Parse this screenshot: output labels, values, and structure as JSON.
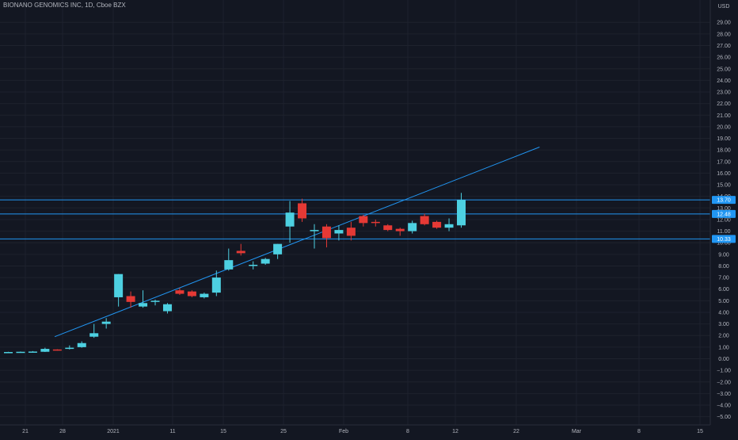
{
  "header": {
    "symbol_name": "BIONANO GENOMICS INC",
    "interval": "1D",
    "exchange": "Cboe BZX",
    "currency": "USD"
  },
  "colors": {
    "background": "#131722",
    "grid": "#1e222d",
    "up": "#4dd0e1",
    "down": "#e53935",
    "line": "#2196f3",
    "text": "#b2b5be"
  },
  "chart_data": {
    "type": "candlestick",
    "title": "BIONANO GENOMICS INC, 1D, Cboe BZX",
    "currency": "USD",
    "ylim": [
      -5.5,
      30.5
    ],
    "y_ticks": [
      "29.00",
      "28.00",
      "27.00",
      "26.00",
      "25.00",
      "24.00",
      "23.00",
      "22.00",
      "21.00",
      "20.00",
      "19.00",
      "18.00",
      "17.00",
      "16.00",
      "15.00",
      "14.00",
      "13.00",
      "12.00",
      "11.00",
      "10.00",
      "9.00",
      "8.00",
      "7.00",
      "6.00",
      "5.00",
      "4.00",
      "3.00",
      "2.00",
      "1.00",
      "0.00",
      "−1.00",
      "−2.00",
      "−3.00",
      "−4.00",
      "−5.00"
    ],
    "x_tick_labels": [
      "21",
      "28",
      "2021",
      "11",
      "15",
      "25",
      "Feb",
      "8",
      "12",
      "22",
      "Mar",
      "8",
      "15"
    ],
    "candles": [
      {
        "o": 0.55,
        "h": 0.6,
        "l": 0.52,
        "c": 0.58
      },
      {
        "o": 0.58,
        "h": 0.62,
        "l": 0.55,
        "c": 0.6
      },
      {
        "o": 0.6,
        "h": 0.66,
        "l": 0.57,
        "c": 0.62
      },
      {
        "o": 0.6,
        "h": 0.95,
        "l": 0.58,
        "c": 0.85
      },
      {
        "o": 0.8,
        "h": 0.82,
        "l": 0.7,
        "c": 0.75
      },
      {
        "o": 0.85,
        "h": 1.15,
        "l": 0.8,
        "c": 0.95
      },
      {
        "o": 1.0,
        "h": 1.5,
        "l": 0.95,
        "c": 1.35
      },
      {
        "o": 1.9,
        "h": 3.0,
        "l": 1.8,
        "c": 2.2
      },
      {
        "o": 3.0,
        "h": 3.5,
        "l": 2.6,
        "c": 3.2
      },
      {
        "o": 5.3,
        "h": 7.3,
        "l": 4.5,
        "c": 7.3
      },
      {
        "o": 5.4,
        "h": 5.8,
        "l": 4.4,
        "c": 4.9
      },
      {
        "o": 4.5,
        "h": 5.9,
        "l": 4.4,
        "c": 4.8
      },
      {
        "o": 4.9,
        "h": 5.1,
        "l": 4.6,
        "c": 5.0
      },
      {
        "o": 4.1,
        "h": 4.8,
        "l": 3.9,
        "c": 4.7
      },
      {
        "o": 5.9,
        "h": 6.1,
        "l": 5.5,
        "c": 5.6
      },
      {
        "o": 5.8,
        "h": 5.9,
        "l": 5.3,
        "c": 5.4
      },
      {
        "o": 5.3,
        "h": 5.7,
        "l": 5.2,
        "c": 5.6
      },
      {
        "o": 5.7,
        "h": 7.6,
        "l": 5.4,
        "c": 7.0
      },
      {
        "o": 7.7,
        "h": 9.5,
        "l": 7.6,
        "c": 8.5
      },
      {
        "o": 9.3,
        "h": 9.9,
        "l": 8.9,
        "c": 9.1
      },
      {
        "o": 8.0,
        "h": 8.4,
        "l": 7.7,
        "c": 8.1
      },
      {
        "o": 8.2,
        "h": 8.7,
        "l": 8.1,
        "c": 8.6
      },
      {
        "o": 9.0,
        "h": 9.9,
        "l": 8.6,
        "c": 9.9
      },
      {
        "o": 11.4,
        "h": 13.6,
        "l": 10.0,
        "c": 12.6
      },
      {
        "o": 13.4,
        "h": 13.8,
        "l": 11.8,
        "c": 12.1
      },
      {
        "o": 11.0,
        "h": 11.6,
        "l": 9.5,
        "c": 11.1
      },
      {
        "o": 11.4,
        "h": 11.6,
        "l": 9.6,
        "c": 10.4
      },
      {
        "o": 10.8,
        "h": 11.5,
        "l": 10.2,
        "c": 11.1
      },
      {
        "o": 11.3,
        "h": 11.8,
        "l": 10.2,
        "c": 10.6
      },
      {
        "o": 12.3,
        "h": 12.4,
        "l": 11.4,
        "c": 11.7
      },
      {
        "o": 11.8,
        "h": 12.0,
        "l": 11.4,
        "c": 11.7
      },
      {
        "o": 11.5,
        "h": 11.6,
        "l": 11.0,
        "c": 11.1
      },
      {
        "o": 11.2,
        "h": 11.3,
        "l": 10.6,
        "c": 11.0
      },
      {
        "o": 11.0,
        "h": 11.9,
        "l": 10.8,
        "c": 11.7
      },
      {
        "o": 12.3,
        "h": 12.5,
        "l": 11.5,
        "c": 11.6
      },
      {
        "o": 11.8,
        "h": 11.9,
        "l": 11.2,
        "c": 11.3
      },
      {
        "o": 11.3,
        "h": 12.1,
        "l": 11.0,
        "c": 11.6
      },
      {
        "o": 11.5,
        "h": 14.3,
        "l": 11.3,
        "c": 13.7
      }
    ],
    "horizontal_lines": [
      {
        "price": 13.7,
        "label": "13.70"
      },
      {
        "price": 12.48,
        "label": "12.48"
      },
      {
        "price": 10.33,
        "label": "10.33"
      }
    ],
    "trendline": {
      "from": {
        "bar": 7,
        "price": 1.9
      },
      "to": {
        "bar": 87.5,
        "price": 18.25
      }
    }
  }
}
